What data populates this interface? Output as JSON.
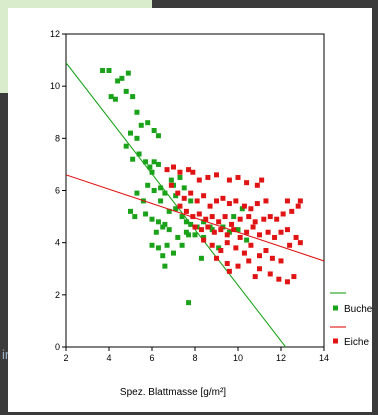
{
  "background": {
    "partial_text": "ir"
  },
  "chart_data": {
    "type": "scatter",
    "title": "",
    "xlabel": "Spez. Blattmasse [g/m²]",
    "ylabel": "",
    "xlim": [
      2,
      14
    ],
    "ylim": [
      0,
      12
    ],
    "xticks": [
      2,
      4,
      6,
      8,
      10,
      12,
      14
    ],
    "yticks": [
      0,
      2,
      4,
      6,
      8,
      10,
      12
    ],
    "grid": false,
    "legend_position": "right",
    "series": [
      {
        "name": "Buche",
        "color": "#1aa31a",
        "fit_line": {
          "x": [
            2,
            12.5
          ],
          "y": [
            10.9,
            -0.3
          ]
        },
        "points": [
          [
            3.7,
            10.6
          ],
          [
            4.0,
            10.6
          ],
          [
            4.1,
            9.6
          ],
          [
            4.3,
            9.5
          ],
          [
            4.4,
            10.2
          ],
          [
            4.6,
            10.3
          ],
          [
            4.8,
            9.8
          ],
          [
            4.9,
            10.5
          ],
          [
            5.1,
            9.6
          ],
          [
            5.3,
            9.0
          ],
          [
            5.5,
            8.5
          ],
          [
            5.0,
            8.2
          ],
          [
            5.3,
            8.0
          ],
          [
            5.8,
            8.6
          ],
          [
            6.1,
            8.3
          ],
          [
            6.3,
            8.1
          ],
          [
            4.8,
            7.7
          ],
          [
            5.1,
            7.2
          ],
          [
            5.4,
            7.4
          ],
          [
            5.7,
            7.1
          ],
          [
            5.9,
            6.9
          ],
          [
            6.1,
            7.1
          ],
          [
            6.3,
            7.0
          ],
          [
            6.0,
            6.7
          ],
          [
            5.8,
            6.2
          ],
          [
            6.1,
            6.0
          ],
          [
            6.4,
            6.1
          ],
          [
            6.6,
            5.9
          ],
          [
            6.9,
            6.4
          ],
          [
            7.0,
            6.2
          ],
          [
            7.3,
            6.5
          ],
          [
            7.5,
            6.1
          ],
          [
            5.3,
            5.9
          ],
          [
            5.6,
            5.6
          ],
          [
            5.0,
            5.2
          ],
          [
            5.2,
            5.0
          ],
          [
            5.7,
            5.1
          ],
          [
            6.0,
            4.9
          ],
          [
            6.3,
            4.8
          ],
          [
            6.6,
            4.7
          ],
          [
            6.8,
            5.2
          ],
          [
            7.1,
            5.3
          ],
          [
            7.4,
            5.0
          ],
          [
            7.6,
            4.8
          ],
          [
            7.8,
            4.7
          ],
          [
            8.1,
            4.6
          ],
          [
            8.4,
            4.8
          ],
          [
            8.7,
            4.6
          ],
          [
            6.2,
            4.4
          ],
          [
            6.5,
            4.6
          ],
          [
            6.8,
            4.5
          ],
          [
            7.2,
            4.2
          ],
          [
            7.6,
            4.4
          ],
          [
            8.0,
            4.3
          ],
          [
            8.4,
            4.2
          ],
          [
            8.8,
            4.5
          ],
          [
            9.3,
            4.6
          ],
          [
            9.6,
            4.4
          ],
          [
            10.0,
            4.5
          ],
          [
            10.2,
            5.3
          ],
          [
            9.8,
            5.0
          ],
          [
            6.0,
            3.9
          ],
          [
            6.3,
            3.8
          ],
          [
            6.5,
            3.5
          ],
          [
            6.7,
            3.9
          ],
          [
            7.0,
            3.6
          ],
          [
            7.4,
            3.9
          ],
          [
            6.6,
            3.1
          ],
          [
            7.7,
            4.3
          ],
          [
            8.3,
            3.4
          ],
          [
            9.1,
            3.8
          ],
          [
            10.4,
            4.1
          ],
          [
            7.7,
            1.7
          ],
          [
            7.1,
            5.8
          ],
          [
            6.4,
            5.6
          ],
          [
            7.8,
            5.6
          ]
        ]
      },
      {
        "name": "Eiche",
        "color": "#e01414",
        "fit_line": {
          "x": [
            2,
            14
          ],
          "y": [
            6.6,
            3.3
          ]
        },
        "points": [
          [
            6.7,
            6.8
          ],
          [
            7.0,
            6.9
          ],
          [
            7.3,
            6.7
          ],
          [
            7.7,
            6.8
          ],
          [
            7.9,
            6.7
          ],
          [
            8.2,
            6.4
          ],
          [
            8.6,
            6.5
          ],
          [
            9.0,
            6.6
          ],
          [
            9.6,
            6.4
          ],
          [
            10.0,
            6.5
          ],
          [
            10.4,
            6.3
          ],
          [
            10.9,
            6.2
          ],
          [
            11.1,
            6.4
          ],
          [
            6.9,
            6.2
          ],
          [
            7.2,
            5.9
          ],
          [
            7.5,
            5.7
          ],
          [
            7.8,
            5.9
          ],
          [
            8.1,
            5.6
          ],
          [
            8.4,
            5.8
          ],
          [
            8.7,
            5.4
          ],
          [
            9.0,
            5.6
          ],
          [
            9.3,
            5.7
          ],
          [
            9.6,
            5.5
          ],
          [
            9.9,
            5.6
          ],
          [
            10.3,
            5.4
          ],
          [
            10.6,
            5.3
          ],
          [
            10.9,
            5.5
          ],
          [
            11.3,
            5.6
          ],
          [
            7.3,
            5.4
          ],
          [
            7.6,
            5.2
          ],
          [
            7.9,
            5.0
          ],
          [
            8.2,
            5.1
          ],
          [
            8.5,
            4.9
          ],
          [
            8.8,
            5.0
          ],
          [
            9.1,
            4.8
          ],
          [
            9.4,
            5.0
          ],
          [
            9.7,
            4.7
          ],
          [
            10.1,
            4.9
          ],
          [
            10.5,
            5.0
          ],
          [
            10.8,
            4.8
          ],
          [
            11.2,
            4.9
          ],
          [
            11.5,
            5.0
          ],
          [
            11.8,
            4.9
          ],
          [
            12.1,
            5.1
          ],
          [
            12.5,
            5.2
          ],
          [
            12.8,
            5.4
          ],
          [
            12.3,
            5.6
          ],
          [
            12.9,
            5.6
          ],
          [
            8.0,
            4.6
          ],
          [
            8.3,
            4.5
          ],
          [
            8.6,
            4.6
          ],
          [
            8.9,
            4.4
          ],
          [
            9.2,
            4.5
          ],
          [
            9.5,
            4.3
          ],
          [
            9.8,
            4.5
          ],
          [
            10.1,
            4.2
          ],
          [
            10.4,
            4.4
          ],
          [
            10.7,
            4.6
          ],
          [
            11.0,
            4.3
          ],
          [
            11.4,
            4.4
          ],
          [
            11.7,
            4.2
          ],
          [
            12.0,
            4.4
          ],
          [
            12.3,
            4.5
          ],
          [
            12.7,
            4.2
          ],
          [
            12.9,
            4.0
          ],
          [
            8.4,
            4.1
          ],
          [
            8.8,
            3.9
          ],
          [
            9.2,
            3.7
          ],
          [
            9.5,
            4.0
          ],
          [
            9.9,
            3.8
          ],
          [
            10.3,
            3.6
          ],
          [
            10.6,
            3.9
          ],
          [
            11.0,
            3.5
          ],
          [
            11.3,
            3.7
          ],
          [
            11.6,
            3.4
          ],
          [
            12.0,
            3.3
          ],
          [
            12.4,
            3.9
          ],
          [
            9.0,
            3.4
          ],
          [
            9.5,
            3.2
          ],
          [
            10.0,
            3.1
          ],
          [
            10.5,
            3.3
          ],
          [
            11.0,
            3.0
          ],
          [
            11.5,
            2.8
          ],
          [
            11.9,
            2.6
          ],
          [
            12.3,
            2.5
          ],
          [
            12.6,
            2.7
          ],
          [
            10.8,
            2.7
          ],
          [
            9.6,
            2.9
          ]
        ]
      }
    ]
  }
}
